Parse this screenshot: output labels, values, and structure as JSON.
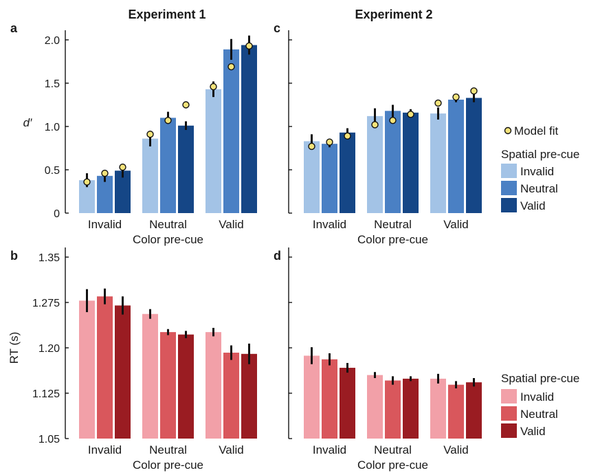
{
  "titles": {
    "exp1": "Experiment 1",
    "exp2": "Experiment 2"
  },
  "colors": {
    "blue": [
      "#a3c3e6",
      "#4a80c4",
      "#154686"
    ],
    "red": [
      "#f2a0a8",
      "#d9575c",
      "#9a1c22"
    ],
    "model_fit": "#f4e37a"
  },
  "legend_top": {
    "fit_label": "Model fit",
    "title": "Spatial pre-cue",
    "items": [
      "Invalid",
      "Neutral",
      "Valid"
    ]
  },
  "legend_bottom": {
    "title": "Spatial pre-cue",
    "items": [
      "Invalid",
      "Neutral",
      "Valid"
    ]
  },
  "chart_data": [
    {
      "panel": "a",
      "type": "bar",
      "categories": [
        "Invalid",
        "Neutral",
        "Valid"
      ],
      "xlabel": "Color pre-cue",
      "ylabel": "d′",
      "ylim": [
        0,
        2.0
      ],
      "yticks": [
        "0",
        "0.5",
        "1.0",
        "1.5",
        "2.0"
      ],
      "series": [
        {
          "name": "Invalid",
          "values": [
            0.38,
            0.86,
            1.43
          ],
          "err": [
            0.08,
            0.09,
            0.09
          ],
          "fit": [
            0.36,
            0.91,
            1.46
          ]
        },
        {
          "name": "Neutral",
          "values": [
            0.43,
            1.1,
            1.89
          ],
          "err": [
            0.07,
            0.07,
            0.12
          ],
          "fit": [
            0.46,
            1.07,
            1.69
          ]
        },
        {
          "name": "Valid",
          "values": [
            0.49,
            1.01,
            1.94
          ],
          "err": [
            0.08,
            0.05,
            0.11
          ],
          "fit": [
            0.53,
            1.25,
            1.93
          ]
        }
      ]
    },
    {
      "panel": "c",
      "type": "bar",
      "categories": [
        "Invalid",
        "Neutral",
        "Valid"
      ],
      "xlabel": "Color pre-cue",
      "ylabel": "",
      "ylim": [
        0,
        2.0
      ],
      "yticks": [],
      "series": [
        {
          "name": "Invalid",
          "values": [
            0.83,
            1.12,
            1.15
          ],
          "err": [
            0.08,
            0.09,
            0.07
          ],
          "fit": [
            0.77,
            1.02,
            1.27
          ]
        },
        {
          "name": "Neutral",
          "values": [
            0.8,
            1.18,
            1.31
          ],
          "err": [
            0.04,
            0.07,
            0.03
          ],
          "fit": [
            0.82,
            1.07,
            1.34
          ]
        },
        {
          "name": "Valid",
          "values": [
            0.93,
            1.16,
            1.33
          ],
          "err": [
            0.05,
            0.04,
            0.05
          ],
          "fit": [
            0.89,
            1.14,
            1.41
          ]
        }
      ]
    },
    {
      "panel": "b",
      "type": "bar",
      "categories": [
        "Invalid",
        "Neutral",
        "Valid"
      ],
      "xlabel": "Color pre-cue",
      "ylabel": "RT (s)",
      "ylim": [
        1.05,
        1.35
      ],
      "yticks": [
        "1.05",
        "1.125",
        "1.20",
        "1.275",
        "1.35"
      ],
      "series": [
        {
          "name": "Invalid",
          "values": [
            1.278,
            1.256,
            1.226
          ],
          "err": [
            0.019,
            0.008,
            0.007
          ],
          "fit": []
        },
        {
          "name": "Neutral",
          "values": [
            1.285,
            1.226,
            1.192
          ],
          "err": [
            0.013,
            0.005,
            0.012
          ],
          "fit": []
        },
        {
          "name": "Valid",
          "values": [
            1.27,
            1.222,
            1.19
          ],
          "err": [
            0.015,
            0.006,
            0.017
          ],
          "fit": []
        }
      ]
    },
    {
      "panel": "d",
      "type": "bar",
      "categories": [
        "Invalid",
        "Neutral",
        "Valid"
      ],
      "xlabel": "Color pre-cue",
      "ylabel": "",
      "ylim": [
        1.05,
        1.35
      ],
      "yticks": [],
      "series": [
        {
          "name": "Invalid",
          "values": [
            1.187,
            1.155,
            1.149
          ],
          "err": [
            0.014,
            0.005,
            0.008
          ],
          "fit": []
        },
        {
          "name": "Neutral",
          "values": [
            1.181,
            1.146,
            1.139
          ],
          "err": [
            0.01,
            0.007,
            0.006
          ],
          "fit": []
        },
        {
          "name": "Valid",
          "values": [
            1.167,
            1.149,
            1.143
          ],
          "err": [
            0.008,
            0.004,
            0.007
          ],
          "fit": []
        }
      ]
    }
  ]
}
